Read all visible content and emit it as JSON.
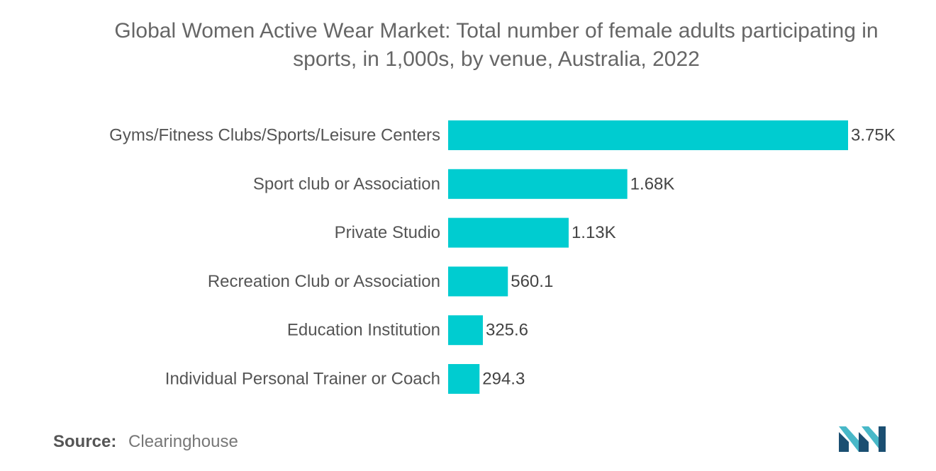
{
  "title_line1": "Global Women Active Wear Market: Total number of female adults participating in",
  "title_line2": "sports, in 1,000s, by venue, Australia, 2022",
  "source": {
    "label": "Source:",
    "text": "Clearinghouse"
  },
  "logo": {
    "icon": "mordor-intelligence-logo",
    "color_dark": "#1b4f72",
    "color_light": "#48b8c8"
  },
  "chart_data": {
    "type": "bar",
    "orientation": "horizontal",
    "categories": [
      "Gyms/Fitness Clubs/Sports/Leisure Centers",
      "Sport club or Association",
      "Private Studio",
      "Recreation Club or Association",
      "Education Institution",
      "Individual Personal Trainer or Coach"
    ],
    "values": [
      3750,
      1680,
      1130,
      560.1,
      325.6,
      294.3
    ],
    "data_labels": [
      "3.75K",
      "1.68K",
      "1.13K",
      "560.1",
      "325.6",
      "294.3"
    ],
    "bar_color": "#00ccd0",
    "grid": false,
    "legend": "none"
  }
}
